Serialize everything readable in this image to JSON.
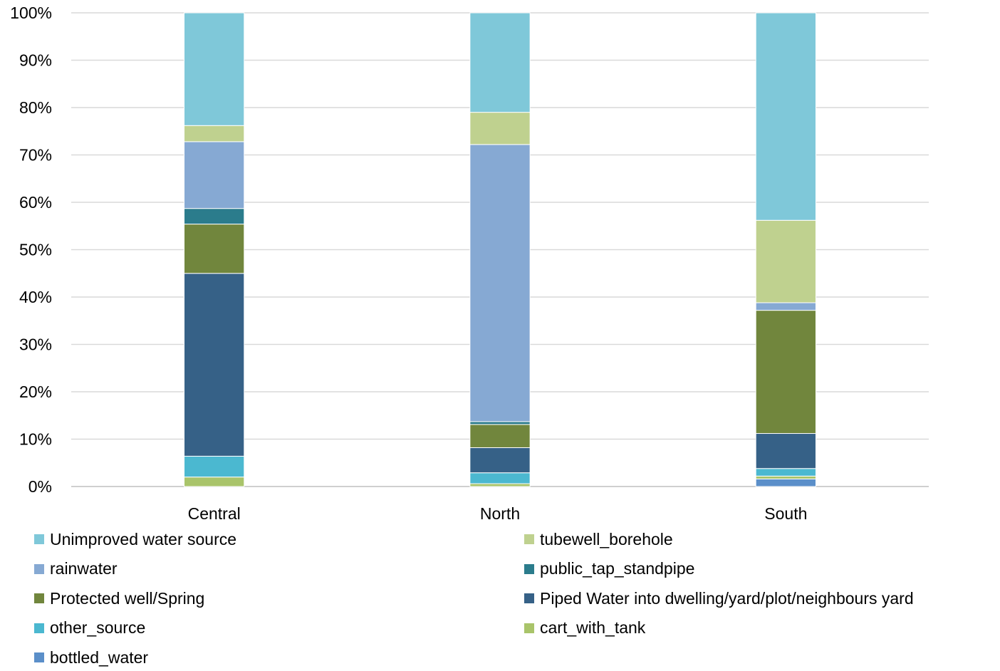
{
  "chart_data": {
    "type": "bar",
    "stacked": "percent",
    "categories": [
      "Central",
      "North",
      "South"
    ],
    "ylim": [
      0,
      100
    ],
    "yticks": [
      "0%",
      "10%",
      "20%",
      "30%",
      "40%",
      "50%",
      "60%",
      "70%",
      "80%",
      "90%",
      "100%"
    ],
    "grid": true,
    "legend_position": "bottom",
    "series": [
      {
        "name": "bottled_water",
        "color": "#5b8fc9",
        "values": [
          0.0,
          0.0,
          1.6
        ]
      },
      {
        "name": "cart_with_tank",
        "color": "#a9c46a",
        "values": [
          2.0,
          0.6,
          0.6
        ]
      },
      {
        "name": "other_source",
        "color": "#4bb8d0",
        "values": [
          4.4,
          2.3,
          1.6
        ]
      },
      {
        "name": "Piped Water into dwelling/yard/plot/neighbours yard",
        "color": "#366187",
        "values": [
          38.6,
          5.3,
          7.4
        ]
      },
      {
        "name": "Protected well/Spring",
        "color": "#71863d",
        "values": [
          10.4,
          4.9,
          26.0
        ]
      },
      {
        "name": "public_tap_standpipe",
        "color": "#2b7c8c",
        "values": [
          3.3,
          0.6,
          0.0
        ]
      },
      {
        "name": "rainwater",
        "color": "#86a9d3",
        "values": [
          14.1,
          58.5,
          1.6
        ]
      },
      {
        "name": "tubewell_borehole",
        "color": "#bfd18f",
        "values": [
          3.4,
          6.8,
          17.4
        ]
      },
      {
        "name": "Unimproved water source",
        "color": "#7fc8d9",
        "values": [
          23.8,
          21.0,
          43.8
        ]
      }
    ],
    "legend_order": [
      "Unimproved water source",
      "tubewell_borehole",
      "rainwater",
      "public_tap_standpipe",
      "Protected well/Spring",
      "Piped Water into dwelling/yard/plot/neighbours yard",
      "other_source",
      "cart_with_tank",
      "bottled_water"
    ]
  }
}
